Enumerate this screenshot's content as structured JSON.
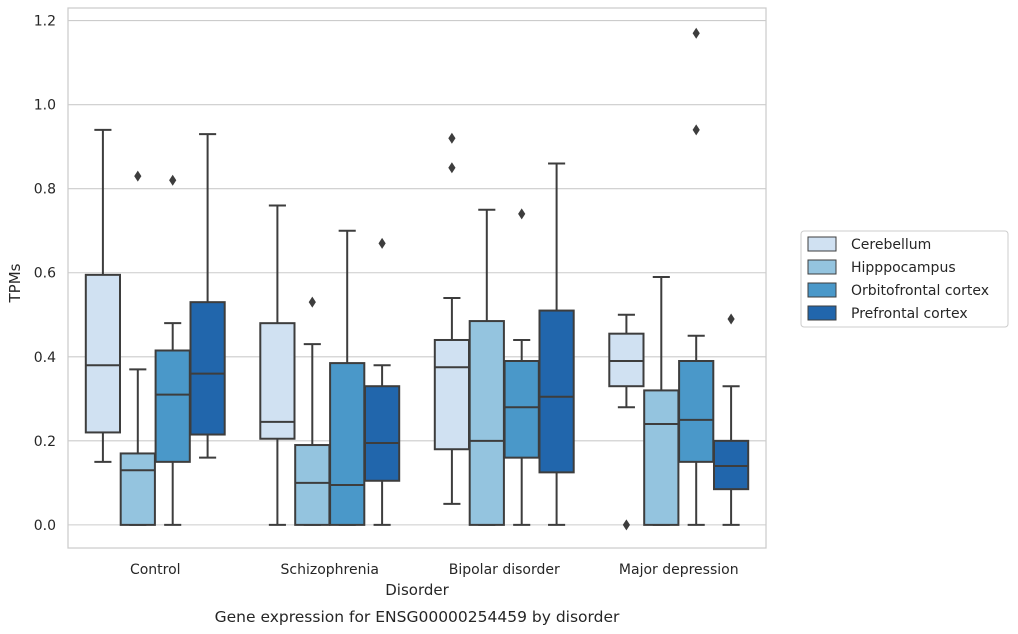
{
  "chart_data": {
    "type": "box",
    "title": "",
    "caption": "Gene expression for ENSG00000254459 by disorder",
    "xlabel": "Disorder",
    "ylabel": "TPMs",
    "ylim": [
      -0.055,
      1.23
    ],
    "yticks": [
      0.0,
      0.2,
      0.4,
      0.6,
      0.8,
      1.0,
      1.2
    ],
    "ytick_labels": [
      "0.0",
      "0.2",
      "0.4",
      "0.6",
      "0.8",
      "1.0",
      "1.2"
    ],
    "grid": "horizontal",
    "legend_position": "right",
    "categories": [
      "Control",
      "Schizophrenia",
      "Bipolar disorder",
      "Major depression"
    ],
    "series": [
      {
        "name": "Cerebellum",
        "color": "#d0e1f2",
        "boxes": [
          {
            "q1": 0.22,
            "median": 0.38,
            "q3": 0.595,
            "whislo": 0.15,
            "whishi": 0.94,
            "fliers": []
          },
          {
            "q1": 0.205,
            "median": 0.245,
            "q3": 0.48,
            "whislo": 0.0,
            "whishi": 0.76,
            "fliers": []
          },
          {
            "q1": 0.18,
            "median": 0.375,
            "q3": 0.44,
            "whislo": 0.05,
            "whishi": 0.54,
            "fliers": [
              0.85,
              0.92
            ]
          },
          {
            "q1": 0.33,
            "median": 0.39,
            "q3": 0.455,
            "whislo": 0.28,
            "whishi": 0.5,
            "fliers": [
              0.0
            ]
          }
        ]
      },
      {
        "name": "Hipppocampus",
        "color": "#94c4df",
        "boxes": [
          {
            "q1": 0.0,
            "median": 0.13,
            "q3": 0.17,
            "whislo": 0.0,
            "whishi": 0.37,
            "fliers": [
              0.83
            ]
          },
          {
            "q1": 0.0,
            "median": 0.1,
            "q3": 0.19,
            "whislo": 0.0,
            "whishi": 0.43,
            "fliers": [
              0.53
            ]
          },
          {
            "q1": 0.0,
            "median": 0.2,
            "q3": 0.485,
            "whislo": 0.0,
            "whishi": 0.75,
            "fliers": []
          },
          {
            "q1": 0.0,
            "median": 0.24,
            "q3": 0.32,
            "whislo": 0.0,
            "whishi": 0.59,
            "fliers": []
          }
        ]
      },
      {
        "name": "Orbitofrontal cortex",
        "color": "#4a98c9",
        "boxes": [
          {
            "q1": 0.15,
            "median": 0.31,
            "q3": 0.415,
            "whislo": 0.0,
            "whishi": 0.48,
            "fliers": [
              0.82
            ]
          },
          {
            "q1": 0.0,
            "median": 0.095,
            "q3": 0.385,
            "whislo": 0.0,
            "whishi": 0.7,
            "fliers": []
          },
          {
            "q1": 0.16,
            "median": 0.28,
            "q3": 0.39,
            "whislo": 0.0,
            "whishi": 0.44,
            "fliers": [
              0.74
            ]
          },
          {
            "q1": 0.15,
            "median": 0.25,
            "q3": 0.39,
            "whislo": 0.0,
            "whishi": 0.45,
            "fliers": [
              0.94,
              1.17
            ]
          }
        ]
      },
      {
        "name": "Prefrontal cortex",
        "color": "#2166ac",
        "boxes": [
          {
            "q1": 0.215,
            "median": 0.36,
            "q3": 0.53,
            "whislo": 0.16,
            "whishi": 0.93,
            "fliers": []
          },
          {
            "q1": 0.105,
            "median": 0.195,
            "q3": 0.33,
            "whislo": 0.0,
            "whishi": 0.38,
            "fliers": [
              0.67
            ]
          },
          {
            "q1": 0.125,
            "median": 0.305,
            "q3": 0.51,
            "whislo": 0.0,
            "whishi": 0.86,
            "fliers": []
          },
          {
            "q1": 0.085,
            "median": 0.14,
            "q3": 0.2,
            "whislo": 0.0,
            "whishi": 0.33,
            "fliers": [
              0.49
            ]
          }
        ]
      }
    ]
  }
}
